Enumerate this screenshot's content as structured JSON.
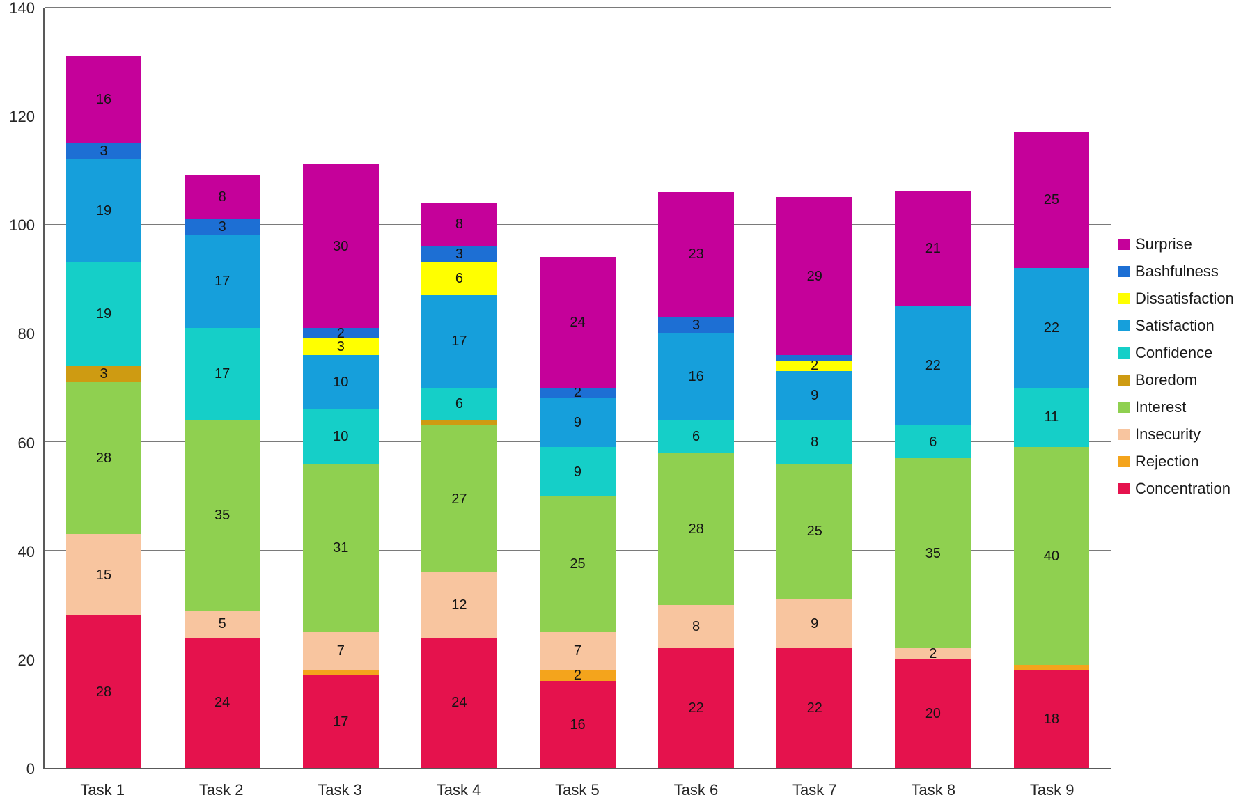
{
  "chart_data": {
    "type": "bar",
    "stacked": true,
    "title": "",
    "xlabel": "",
    "ylabel": "",
    "categories": [
      "Task 1",
      "Task 2",
      "Task 3",
      "Task 4",
      "Task 5",
      "Task 6",
      "Task 7",
      "Task 8",
      "Task 9"
    ],
    "series": [
      {
        "name": "Concentration",
        "color": "#E5124D",
        "values": [
          28,
          24,
          17,
          24,
          16,
          22,
          22,
          20,
          18
        ]
      },
      {
        "name": "Rejection",
        "color": "#F4A41C",
        "values": [
          0,
          0,
          1,
          0,
          2,
          0,
          0,
          0,
          1
        ]
      },
      {
        "name": "Insecurity",
        "color": "#F8C59F",
        "values": [
          15,
          5,
          7,
          12,
          7,
          8,
          9,
          2,
          0
        ]
      },
      {
        "name": "Interest",
        "color": "#8FD050",
        "values": [
          28,
          35,
          31,
          27,
          25,
          28,
          25,
          35,
          40
        ]
      },
      {
        "name": "Boredom",
        "color": "#CE9B12",
        "values": [
          3,
          0,
          0,
          1,
          0,
          0,
          0,
          0,
          0
        ]
      },
      {
        "name": "Confidence",
        "color": "#15CFC8",
        "values": [
          19,
          17,
          10,
          6,
          9,
          6,
          8,
          6,
          11
        ]
      },
      {
        "name": "Satisfaction",
        "color": "#169FDB",
        "values": [
          19,
          17,
          10,
          17,
          9,
          16,
          9,
          22,
          22
        ]
      },
      {
        "name": "Dissatisfaction",
        "color": "#FFFF00",
        "values": [
          0,
          0,
          3,
          6,
          0,
          0,
          2,
          0,
          0
        ]
      },
      {
        "name": "Bashfulness",
        "color": "#1D6FD4",
        "values": [
          3,
          3,
          2,
          3,
          2,
          3,
          1,
          0,
          0
        ]
      },
      {
        "name": "Surprise",
        "color": "#C5019A",
        "values": [
          16,
          8,
          30,
          8,
          24,
          23,
          29,
          21,
          25
        ]
      }
    ],
    "legend_order": [
      "Surprise",
      "Bashfulness",
      "Dissatisfaction",
      "Satisfaction",
      "Confidence",
      "Boredom",
      "Interest",
      "Insecurity",
      "Rejection",
      "Concentration"
    ],
    "legend_position": "right",
    "ylim": [
      0,
      140
    ],
    "yticks": [
      0,
      20,
      40,
      60,
      80,
      100,
      120,
      140
    ],
    "grid": true,
    "label_min_value": 2
  },
  "style": {
    "grid_color": "#7a7a7a",
    "axis_color": "#595959",
    "tick_text_color": "#262626",
    "value_label_color": "#141414",
    "background": "#ffffff"
  }
}
